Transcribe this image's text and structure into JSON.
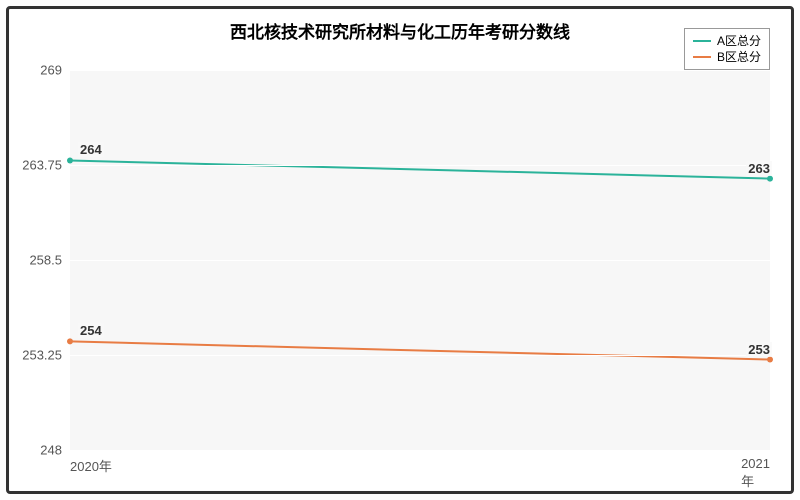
{
  "chart": {
    "type": "line",
    "title": "西北核技术研究所材料与化工历年考研分数线",
    "title_fontsize": 17,
    "background_color": "#f7f7f7",
    "border_color": "#333333",
    "grid_color": "#ffffff",
    "text_color": "#333333",
    "label_color": "#555555",
    "ylim": [
      248,
      269
    ],
    "yticks": [
      248,
      253.25,
      258.5,
      263.75,
      269
    ],
    "ytick_labels": [
      "248",
      "253.25",
      "258.5",
      "263.75",
      "269"
    ],
    "xcategories": [
      "2020年",
      "2021年"
    ],
    "series": [
      {
        "name": "A区总分",
        "color": "#2bb39a",
        "values": [
          264,
          263
        ],
        "line_width": 2,
        "label_left": "264",
        "label_right": "263"
      },
      {
        "name": "B区总分",
        "color": "#e87c44",
        "values": [
          254,
          253
        ],
        "line_width": 2,
        "label_left": "254",
        "label_right": "253"
      }
    ],
    "legend": {
      "position": "top-right",
      "border_color": "#999999"
    }
  }
}
